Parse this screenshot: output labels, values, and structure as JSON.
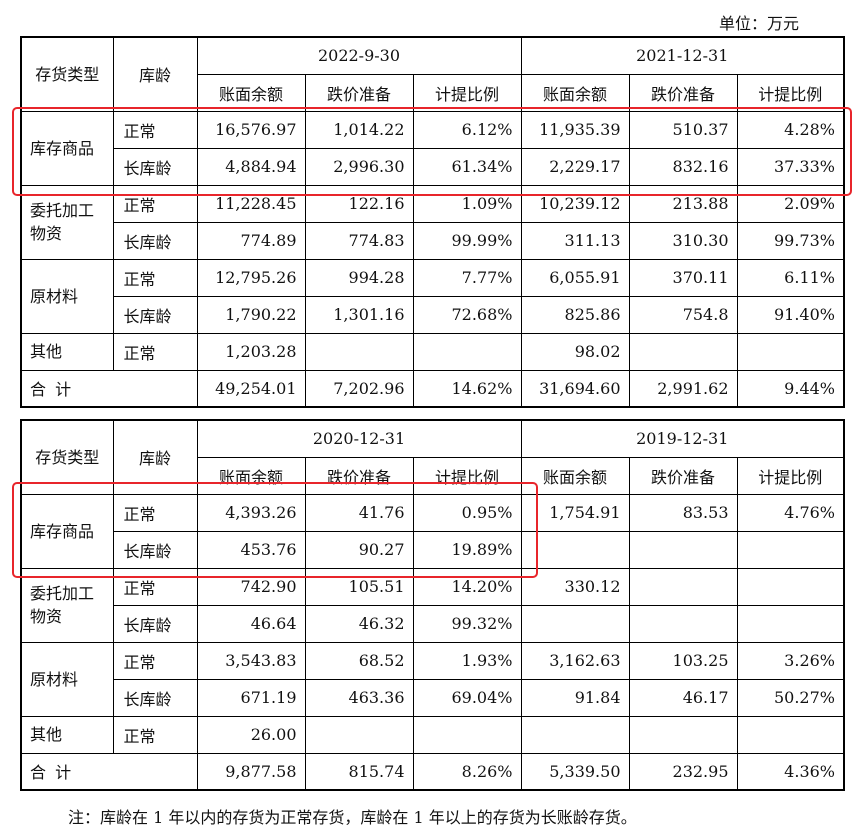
{
  "unit_label": "单位：万元",
  "headers": {
    "category": "存货类型",
    "age": "库龄",
    "book_balance": "账面余额",
    "impairment": "跌价准备",
    "ratio": "计提比例"
  },
  "table1": {
    "periods": [
      "2022-9-30",
      "2021-12-31"
    ],
    "groups": [
      {
        "category": "库存商品",
        "rows": [
          {
            "age": "正常",
            "vals": [
              "16,576.97",
              "1,014.22",
              "6.12%",
              "11,935.39",
              "510.37",
              "4.28%"
            ]
          },
          {
            "age": "长库龄",
            "vals": [
              "4,884.94",
              "2,996.30",
              "61.34%",
              "2,229.17",
              "832.16",
              "37.33%"
            ]
          }
        ]
      },
      {
        "category": "委托加工物资",
        "rows": [
          {
            "age": "正常",
            "vals": [
              "11,228.45",
              "122.16",
              "1.09%",
              "10,239.12",
              "213.88",
              "2.09%"
            ]
          },
          {
            "age": "长库龄",
            "vals": [
              "774.89",
              "774.83",
              "99.99%",
              "311.13",
              "310.30",
              "99.73%"
            ]
          }
        ]
      },
      {
        "category": "原材料",
        "rows": [
          {
            "age": "正常",
            "vals": [
              "12,795.26",
              "994.28",
              "7.77%",
              "6,055.91",
              "370.11",
              "6.11%"
            ]
          },
          {
            "age": "长库龄",
            "vals": [
              "1,790.22",
              "1,301.16",
              "72.68%",
              "825.86",
              "754.8",
              "91.40%"
            ]
          }
        ]
      },
      {
        "category": "其他",
        "rows": [
          {
            "age": "正常",
            "vals": [
              "1,203.28",
              "",
              "",
              "98.02",
              "",
              ""
            ]
          }
        ]
      }
    ],
    "total": {
      "label": "合 计",
      "vals": [
        "49,254.01",
        "7,202.96",
        "14.62%",
        "31,694.60",
        "2,991.62",
        "9.44%"
      ]
    }
  },
  "table2": {
    "periods": [
      "2020-12-31",
      "2019-12-31"
    ],
    "groups": [
      {
        "category": "库存商品",
        "rows": [
          {
            "age": "正常",
            "vals": [
              "4,393.26",
              "41.76",
              "0.95%",
              "1,754.91",
              "83.53",
              "4.76%"
            ]
          },
          {
            "age": "长库龄",
            "vals": [
              "453.76",
              "90.27",
              "19.89%",
              "",
              "",
              ""
            ]
          }
        ]
      },
      {
        "category": "委托加工物资",
        "rows": [
          {
            "age": "正常",
            "vals": [
              "742.90",
              "105.51",
              "14.20%",
              "330.12",
              "",
              ""
            ]
          },
          {
            "age": "长库龄",
            "vals": [
              "46.64",
              "46.32",
              "99.32%",
              "",
              "",
              ""
            ]
          }
        ]
      },
      {
        "category": "原材料",
        "rows": [
          {
            "age": "正常",
            "vals": [
              "3,543.83",
              "68.52",
              "1.93%",
              "3,162.63",
              "103.25",
              "3.26%"
            ]
          },
          {
            "age": "长库龄",
            "vals": [
              "671.19",
              "463.36",
              "69.04%",
              "91.84",
              "46.17",
              "50.27%"
            ]
          }
        ]
      },
      {
        "category": "其他",
        "rows": [
          {
            "age": "正常",
            "vals": [
              "26.00",
              "",
              "",
              "",
              "",
              ""
            ]
          }
        ]
      }
    ],
    "total": {
      "label": "合 计",
      "vals": [
        "9,877.58",
        "815.74",
        "8.26%",
        "5,339.50",
        "232.95",
        "4.36%"
      ]
    }
  },
  "note": "注：库龄在 1 年以内的存货为正常存货，库龄在 1 年以上的存货为长账龄存货。",
  "colors": {
    "highlight": "#e8252b",
    "border": "#000000"
  }
}
